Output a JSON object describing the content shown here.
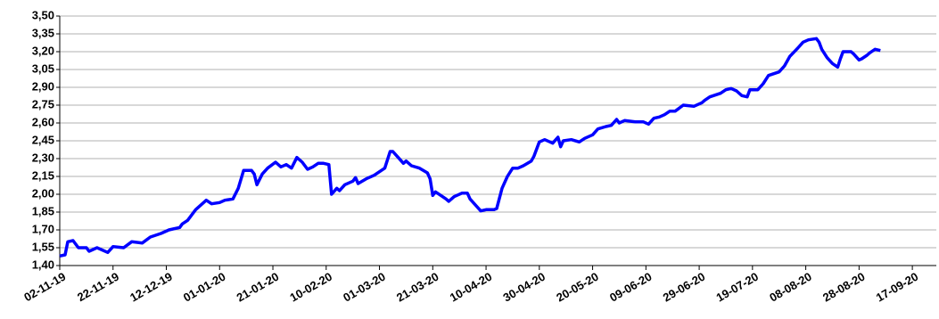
{
  "chart_data": {
    "type": "line",
    "x": [
      "2019-11-02",
      "2019-11-04",
      "2019-11-05",
      "2019-11-07",
      "2019-11-09",
      "2019-11-12",
      "2019-11-13",
      "2019-11-16",
      "2019-11-20",
      "2019-11-22",
      "2019-11-26",
      "2019-11-29",
      "2019-12-03",
      "2019-12-06",
      "2019-12-10",
      "2019-12-13",
      "2019-12-17",
      "2019-12-18",
      "2019-12-20",
      "2019-12-23",
      "2019-12-27",
      "2019-12-29",
      "2020-01-01",
      "2020-01-03",
      "2020-01-06",
      "2020-01-08",
      "2020-01-10",
      "2020-01-13",
      "2020-01-14",
      "2020-01-15",
      "2020-01-17",
      "2020-01-19",
      "2020-01-22",
      "2020-01-24",
      "2020-01-26",
      "2020-01-28",
      "2020-01-30",
      "2020-02-01",
      "2020-02-03",
      "2020-02-05",
      "2020-02-07",
      "2020-02-09",
      "2020-02-11",
      "2020-02-12",
      "2020-02-14",
      "2020-02-15",
      "2020-02-17",
      "2020-02-20",
      "2020-02-21",
      "2020-02-22",
      "2020-02-25",
      "2020-02-28",
      "2020-03-03",
      "2020-03-05",
      "2020-03-06",
      "2020-03-08",
      "2020-03-10",
      "2020-03-11",
      "2020-03-13",
      "2020-03-16",
      "2020-03-19",
      "2020-03-20",
      "2020-03-21",
      "2020-03-22",
      "2020-03-24",
      "2020-03-26",
      "2020-03-27",
      "2020-03-29",
      "2020-04-01",
      "2020-04-03",
      "2020-04-04",
      "2020-04-06",
      "2020-04-08",
      "2020-04-10",
      "2020-04-13",
      "2020-04-14",
      "2020-04-16",
      "2020-04-18",
      "2020-04-20",
      "2020-04-22",
      "2020-04-24",
      "2020-04-27",
      "2020-04-28",
      "2020-04-30",
      "2020-05-02",
      "2020-05-04",
      "2020-05-05",
      "2020-05-07",
      "2020-05-08",
      "2020-05-09",
      "2020-05-12",
      "2020-05-15",
      "2020-05-17",
      "2020-05-20",
      "2020-05-22",
      "2020-05-25",
      "2020-05-27",
      "2020-05-29",
      "2020-05-30",
      "2020-06-01",
      "2020-06-05",
      "2020-06-08",
      "2020-06-10",
      "2020-06-12",
      "2020-06-14",
      "2020-06-16",
      "2020-06-18",
      "2020-06-20",
      "2020-06-23",
      "2020-06-27",
      "2020-06-30",
      "2020-07-01",
      "2020-07-03",
      "2020-07-07",
      "2020-07-09",
      "2020-07-11",
      "2020-07-13",
      "2020-07-15",
      "2020-07-17",
      "2020-07-18",
      "2020-07-21",
      "2020-07-23",
      "2020-07-25",
      "2020-07-29",
      "2020-07-31",
      "2020-08-02",
      "2020-08-05",
      "2020-08-07",
      "2020-08-09",
      "2020-08-12",
      "2020-08-13",
      "2020-08-14",
      "2020-08-16",
      "2020-08-18",
      "2020-08-20",
      "2020-08-21",
      "2020-08-22",
      "2020-08-25",
      "2020-08-26",
      "2020-08-28",
      "2020-08-29",
      "2020-08-31",
      "2020-09-01",
      "2020-09-03",
      "2020-09-05"
    ],
    "series": [
      {
        "color": "#0000ff",
        "values": [
          1.48,
          1.49,
          1.6,
          1.61,
          1.55,
          1.55,
          1.52,
          1.55,
          1.51,
          1.56,
          1.55,
          1.6,
          1.59,
          1.64,
          1.67,
          1.7,
          1.72,
          1.75,
          1.78,
          1.87,
          1.95,
          1.92,
          1.93,
          1.95,
          1.96,
          2.05,
          2.2,
          2.2,
          2.17,
          2.08,
          2.17,
          2.22,
          2.27,
          2.23,
          2.25,
          2.22,
          2.31,
          2.27,
          2.21,
          2.23,
          2.26,
          2.26,
          2.25,
          2.0,
          2.05,
          2.03,
          2.08,
          2.11,
          2.14,
          2.09,
          2.13,
          2.16,
          2.22,
          2.36,
          2.36,
          2.31,
          2.26,
          2.28,
          2.24,
          2.22,
          2.18,
          2.13,
          1.99,
          2.02,
          1.99,
          1.96,
          1.94,
          1.98,
          2.01,
          2.01,
          1.96,
          1.91,
          1.86,
          1.87,
          1.87,
          1.88,
          2.05,
          2.15,
          2.22,
          2.22,
          2.24,
          2.28,
          2.32,
          2.44,
          2.46,
          2.44,
          2.43,
          2.48,
          2.4,
          2.45,
          2.46,
          2.44,
          2.47,
          2.5,
          2.55,
          2.57,
          2.58,
          2.63,
          2.6,
          2.62,
          2.61,
          2.61,
          2.59,
          2.64,
          2.65,
          2.67,
          2.7,
          2.7,
          2.75,
          2.74,
          2.77,
          2.79,
          2.82,
          2.85,
          2.88,
          2.89,
          2.87,
          2.83,
          2.82,
          2.88,
          2.88,
          2.93,
          3.0,
          3.03,
          3.08,
          3.16,
          3.23,
          3.28,
          3.3,
          3.31,
          3.28,
          3.22,
          3.15,
          3.1,
          3.07,
          3.14,
          3.2,
          3.2,
          3.18,
          3.13,
          3.14,
          3.17,
          3.19,
          3.22,
          3.21
        ]
      }
    ],
    "xlim": [
      "2019-11-02",
      "2020-09-26"
    ],
    "xticks": [
      {
        "value": "2019-11-02",
        "label": "02-11-19"
      },
      {
        "value": "2019-11-22",
        "label": "22-11-19"
      },
      {
        "value": "2019-12-12",
        "label": "12-12-19"
      },
      {
        "value": "2020-01-01",
        "label": "01-01-20"
      },
      {
        "value": "2020-01-21",
        "label": "21-01-20"
      },
      {
        "value": "2020-02-10",
        "label": "10-02-20"
      },
      {
        "value": "2020-03-01",
        "label": "01-03-20"
      },
      {
        "value": "2020-03-21",
        "label": "21-03-20"
      },
      {
        "value": "2020-04-10",
        "label": "10-04-20"
      },
      {
        "value": "2020-04-30",
        "label": "30-04-20"
      },
      {
        "value": "2020-05-20",
        "label": "20-05-20"
      },
      {
        "value": "2020-06-09",
        "label": "09-06-20"
      },
      {
        "value": "2020-06-29",
        "label": "29-06-20"
      },
      {
        "value": "2020-07-19",
        "label": "19-07-20"
      },
      {
        "value": "2020-08-08",
        "label": "08-08-20"
      },
      {
        "value": "2020-08-28",
        "label": "28-08-20"
      },
      {
        "value": "2020-09-17",
        "label": "17-09-20"
      }
    ],
    "ylim": [
      1.4,
      3.5
    ],
    "yticks": [
      {
        "value": 1.4,
        "label": "1,40"
      },
      {
        "value": 1.55,
        "label": "1,55"
      },
      {
        "value": 1.7,
        "label": "1,70"
      },
      {
        "value": 1.85,
        "label": "1,85"
      },
      {
        "value": 2.0,
        "label": "2,00"
      },
      {
        "value": 2.15,
        "label": "2,15"
      },
      {
        "value": 2.3,
        "label": "2,30"
      },
      {
        "value": 2.45,
        "label": "2,45"
      },
      {
        "value": 2.6,
        "label": "2,60"
      },
      {
        "value": 2.75,
        "label": "2,75"
      },
      {
        "value": 2.9,
        "label": "2,90"
      },
      {
        "value": 3.05,
        "label": "3,05"
      },
      {
        "value": 3.2,
        "label": "3,20"
      },
      {
        "value": 3.35,
        "label": "3,35"
      },
      {
        "value": 3.5,
        "label": "3,50"
      }
    ],
    "grid": true
  }
}
